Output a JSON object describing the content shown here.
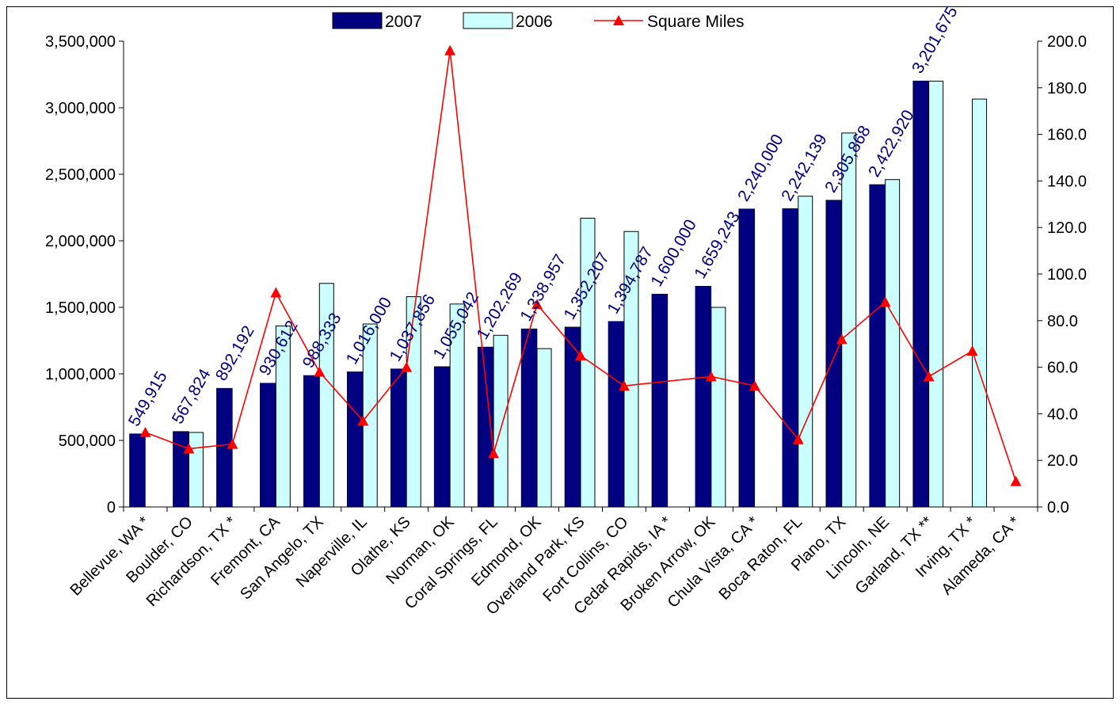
{
  "chart_data": {
    "type": "bar",
    "categories": [
      "Bellevue, WA *",
      "Boulder, CO",
      "Richardson, TX *",
      "Fremont, CA",
      "San Angelo, TX",
      "Naperville, IL",
      "Olathe, KS",
      "Norman, OK",
      "Coral Springs, FL",
      "Edmond, OK",
      "Overland Park, KS",
      "Fort Collins, CO",
      "Cedar Rapids, IA *",
      "Broken Arrow, OK",
      "Chula Vista, CA *",
      "Boca Raton, FL",
      "Plano, TX",
      "Lincoln, NE",
      "Garland, TX **",
      "Irving, TX *",
      "Alameda, CA *"
    ],
    "series": [
      {
        "name": "2007",
        "type": "bar",
        "axis": "left",
        "color": "#000080",
        "values": [
          549915,
          567824,
          892192,
          930612,
          988333,
          1016000,
          1037856,
          1055042,
          1202269,
          1338957,
          1352207,
          1394787,
          1600000,
          1659243,
          2240000,
          2242139,
          2305868,
          2422920,
          3201675,
          null,
          null
        ],
        "labels": [
          "549,915",
          "567,824",
          "892,192",
          "930,612",
          "988,333",
          "1,016,000",
          "1,037,856",
          "1,055,042",
          "1,202,269",
          "1,338,957",
          "1,352,207",
          "1,394,787",
          "1,600,000",
          "1,659,243",
          "2,240,000",
          "2,242,139",
          "2,305,868",
          "2,422,920",
          "3,201,675",
          "",
          ""
        ]
      },
      {
        "name": "2006",
        "type": "bar",
        "axis": "left",
        "color": "#CCFFFF",
        "values": [
          null,
          560000,
          null,
          1360000,
          1680000,
          1375000,
          1580000,
          1525000,
          1290000,
          1190000,
          2170000,
          2070000,
          null,
          1500000,
          null,
          2335000,
          2810000,
          2460000,
          3200000,
          3065000,
          null
        ]
      },
      {
        "name": "Square Miles",
        "type": "line",
        "axis": "right",
        "color": "#FF0000",
        "marker": "triangle",
        "values": [
          32,
          25,
          27,
          92,
          58,
          37,
          60,
          196,
          23,
          87,
          65,
          52,
          null,
          56,
          52,
          29,
          72,
          88,
          56,
          67,
          11
        ]
      }
    ],
    "y_left": {
      "ylim": [
        0,
        3500000
      ],
      "ticks": [
        "0",
        "500,000",
        "1,000,000",
        "1,500,000",
        "2,000,000",
        "2,500,000",
        "3,000,000",
        "3,500,000"
      ]
    },
    "y_right": {
      "ylim": [
        0,
        200
      ],
      "ticks": [
        "0.0",
        "20.0",
        "40.0",
        "60.0",
        "80.0",
        "100.0",
        "120.0",
        "140.0",
        "160.0",
        "180.0",
        "200.0"
      ]
    },
    "legend": {
      "placement": "top-center",
      "labels": [
        "2007",
        "2006",
        "Square Miles"
      ]
    },
    "grid": false
  }
}
